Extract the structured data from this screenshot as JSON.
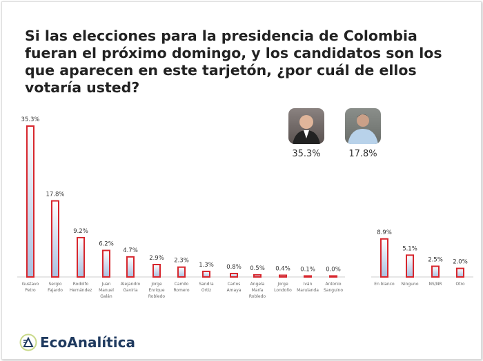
{
  "title": "Si las elecciones para la presidencia de Colombia fueran el próximo domingo, y los candidatos son los que aparecen en este tarjetón, ¿por cuál de ellos votaría usted?",
  "highlights": [
    {
      "candidate": "Gustavo Petro",
      "value_label": "35.3%"
    },
    {
      "candidate": "Sergio Fajardo",
      "value_label": "17.8%"
    }
  ],
  "brand": {
    "name": "EcoAnalítica"
  },
  "colors": {
    "bar_stroke": "#d7262d",
    "bar_fill_top": "#ffffff",
    "bar_fill_bottom": "#a9c0e0"
  },
  "chart_data": {
    "type": "bar",
    "categories": [
      [
        "Gustavo",
        "Petro"
      ],
      [
        "Sergio",
        "Fajardo"
      ],
      [
        "Rodolfo",
        "Hernández"
      ],
      [
        "Juan",
        "Manuel",
        "Galán"
      ],
      [
        "Alejandro",
        "Gaviria"
      ],
      [
        "Jorge",
        "Enrique",
        "Robledo"
      ],
      [
        "Camilo",
        "Romero"
      ],
      [
        "Sandra",
        "Ortiz"
      ],
      [
        "Carlos",
        "Amaya"
      ],
      [
        "Angela",
        "María",
        "Robledo"
      ],
      [
        "Jorge",
        "Londoño"
      ],
      [
        "Iván",
        "Marulanda"
      ],
      [
        "Antonio",
        "Sanguino"
      ],
      [
        "En blanco"
      ],
      [
        "Ninguno"
      ],
      [
        "NS/NR"
      ],
      [
        "Otro"
      ]
    ],
    "values": [
      35.3,
      17.8,
      9.2,
      6.2,
      4.7,
      2.9,
      2.3,
      1.3,
      0.8,
      0.5,
      0.4,
      0.1,
      0.0,
      8.9,
      5.1,
      2.5,
      2.0
    ],
    "data_labels": [
      "35.3%",
      "17.8%",
      "9.2%",
      "6.2%",
      "4.7%",
      "2.9%",
      "2.3%",
      "1.3%",
      "0.8%",
      "0.5%",
      "0.4%",
      "0.1%",
      "0.0%",
      "8.9%",
      "5.1%",
      "2.5%",
      "2.0%"
    ],
    "ylim": [
      0,
      35.3
    ],
    "grid": false,
    "legend": "none"
  }
}
